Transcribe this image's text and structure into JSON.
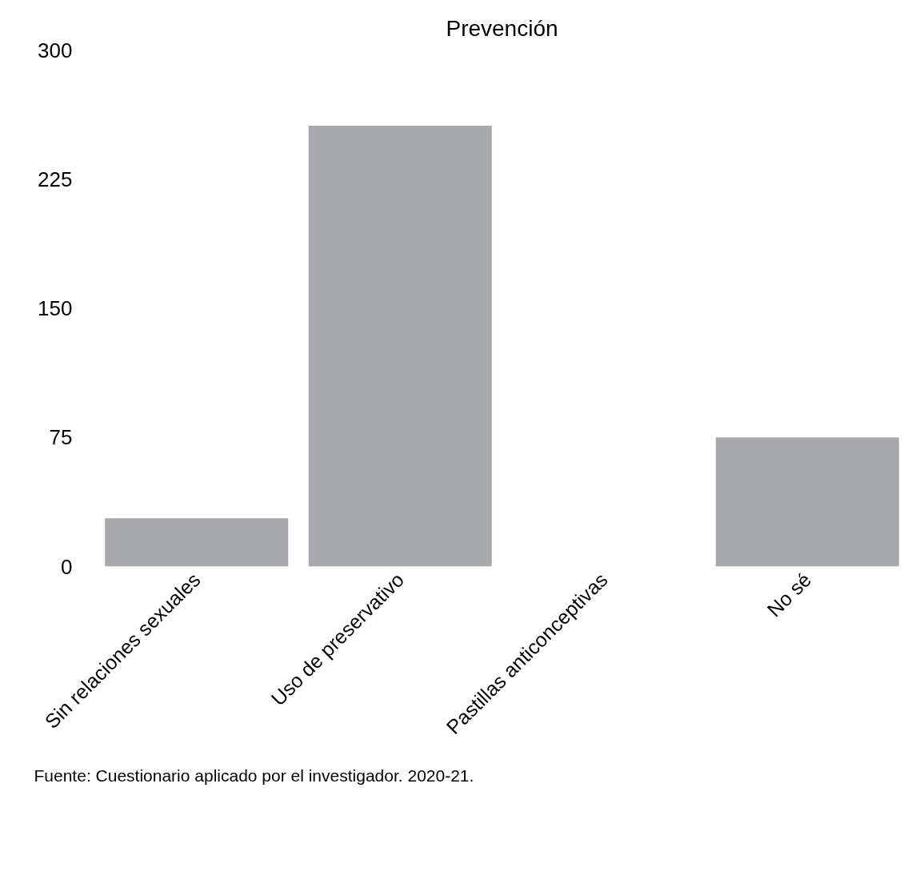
{
  "chart_data": {
    "type": "bar",
    "title": "Prevención",
    "categories": [
      "Sin relaciones sexuales",
      "Uso de preservativo",
      "Pastillas anticonceptivas",
      "No sé"
    ],
    "values": [
      28,
      256,
      0,
      75
    ],
    "color": "#a7a9ac",
    "ylim": [
      0,
      300
    ],
    "yticks": [
      0,
      75,
      150,
      225,
      300
    ],
    "grid": false,
    "annotations": [
      "Fuente: Cuestionario aplicado por el investigador. 2020-21."
    ]
  }
}
